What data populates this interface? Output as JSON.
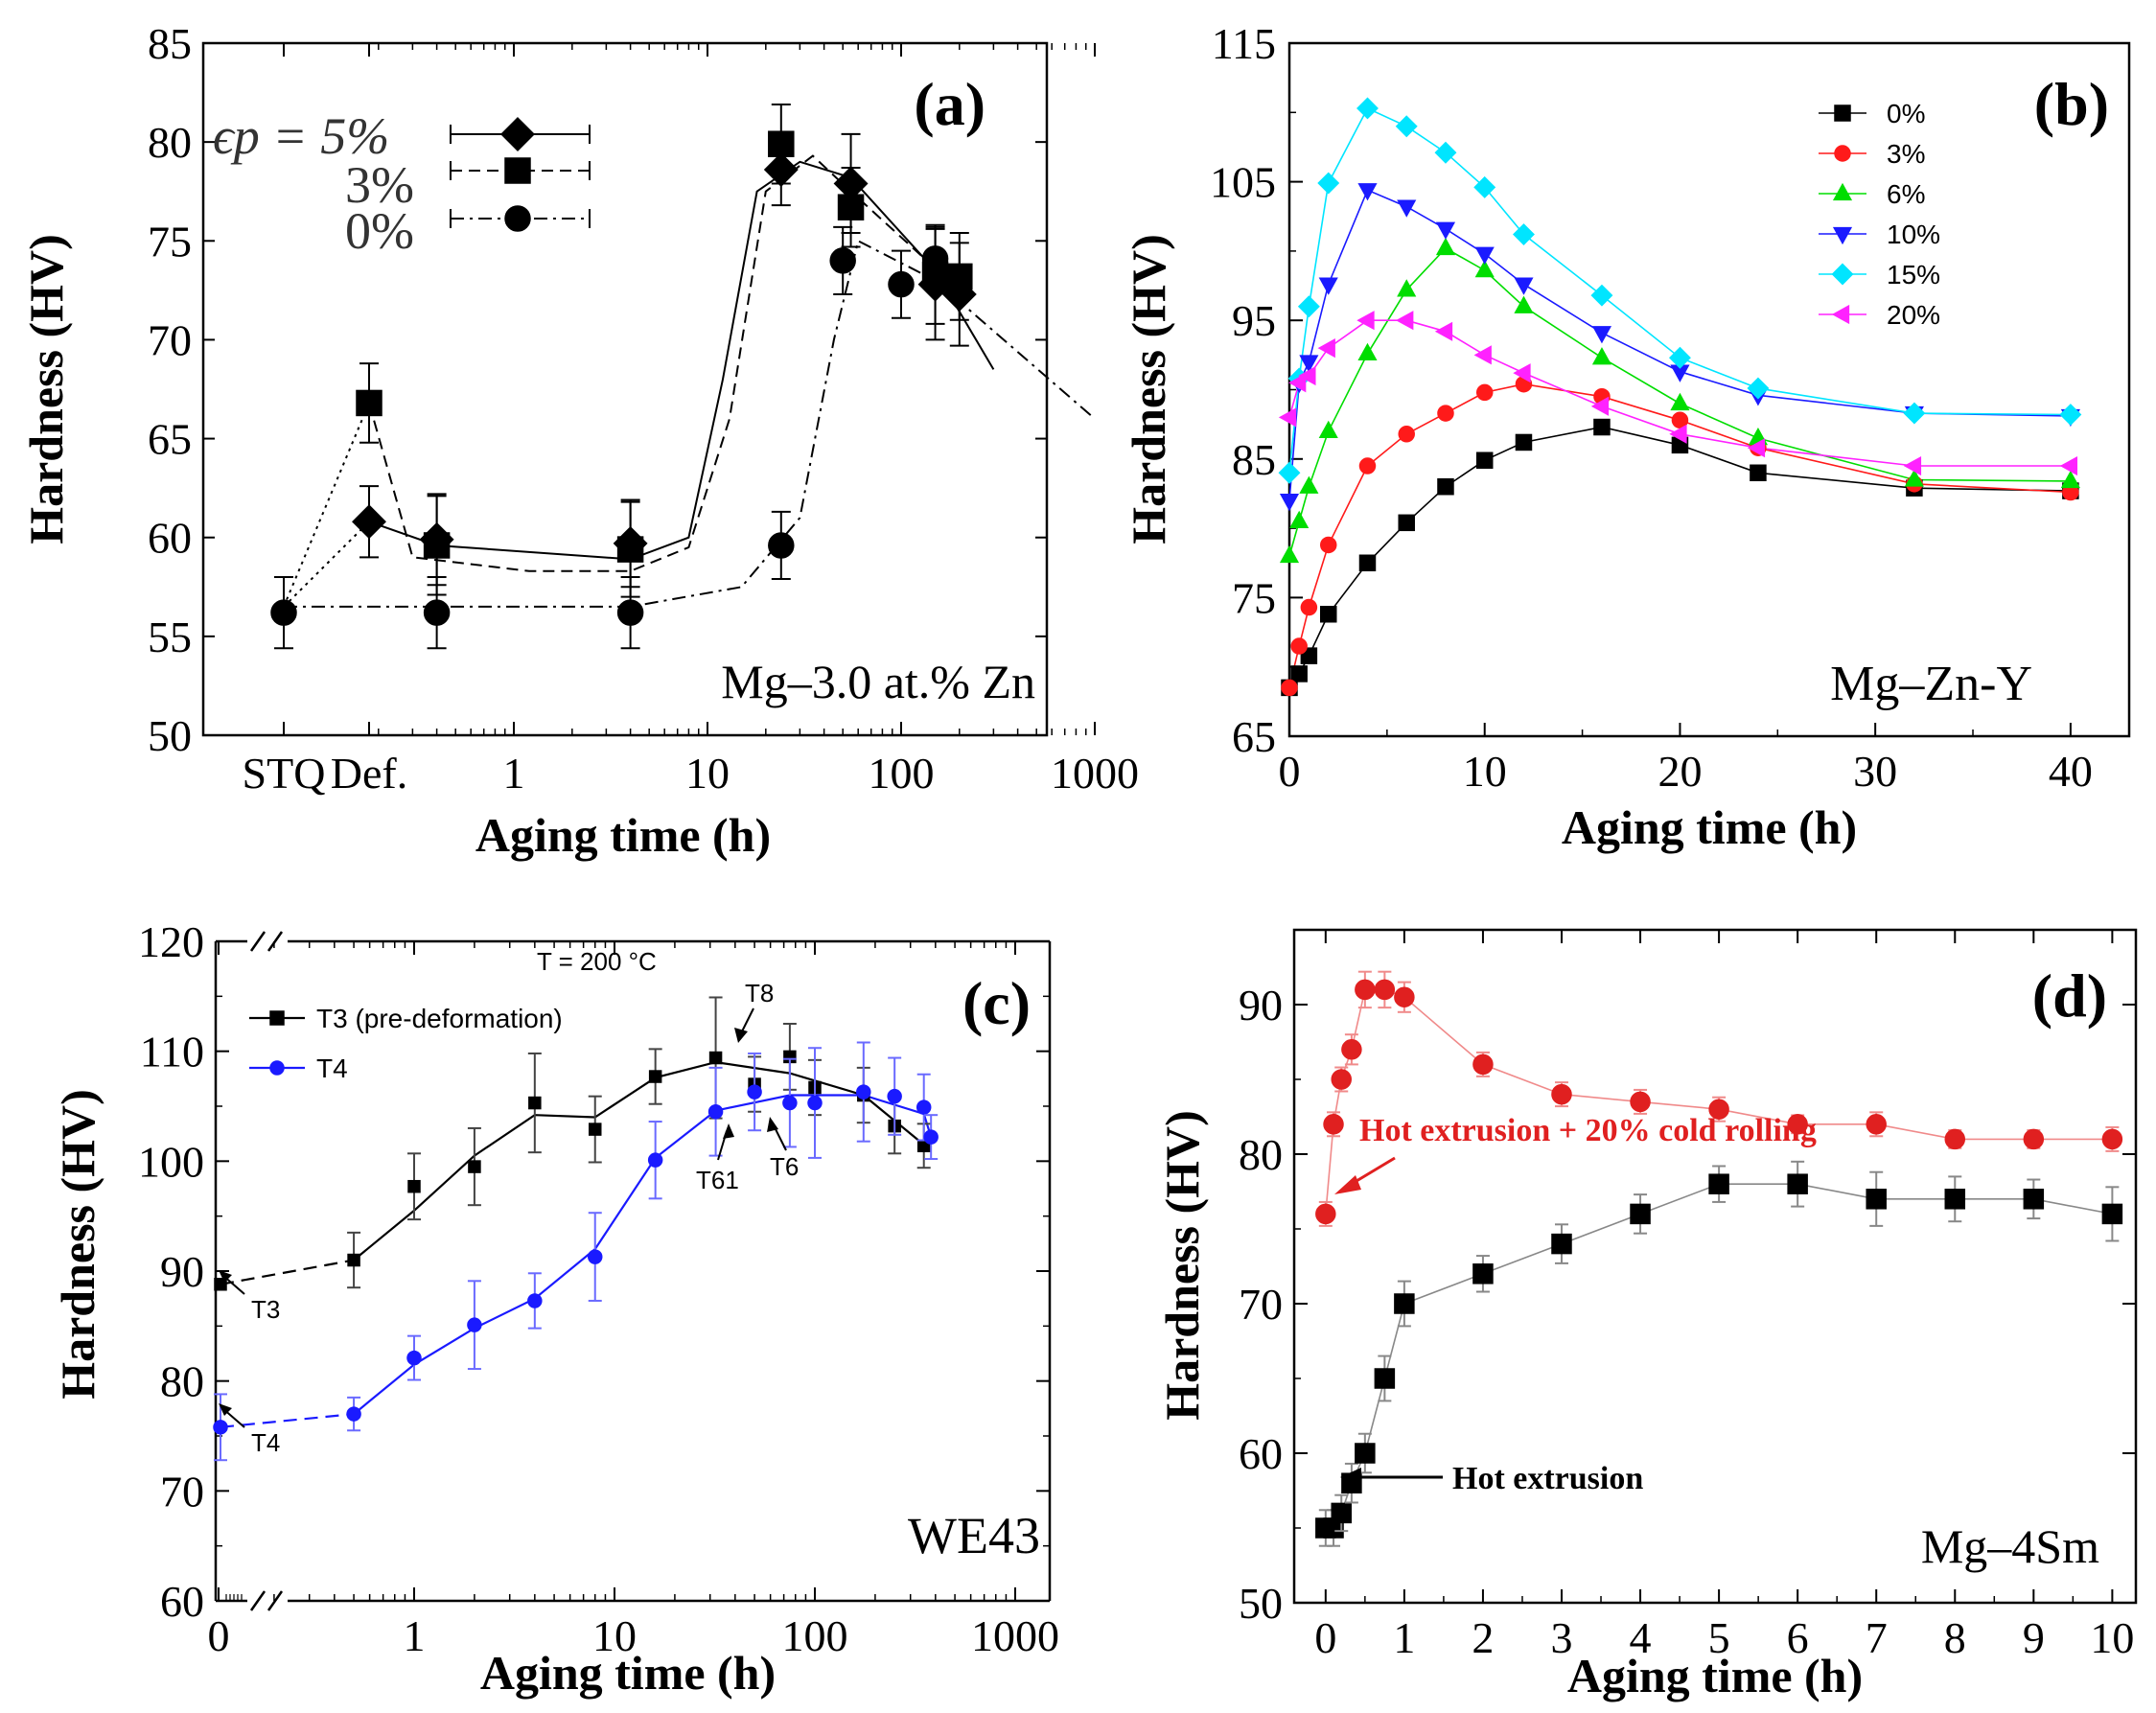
{
  "chart_data": [
    {
      "panel": "(a)",
      "type": "scatter",
      "xscale": "log",
      "xlabel": "Aging time (h)",
      "ylabel": "Hardness (HV)",
      "ylim": [
        50,
        85
      ],
      "yticks": [
        "50",
        "55",
        "60",
        "65",
        "70",
        "75",
        "80",
        "85"
      ],
      "xticks": [
        "STQ",
        "Def.",
        "1",
        "10",
        "100",
        "1000"
      ],
      "annotation": "Mg–3.0 at.% Zn",
      "legend_header": "ϵp = 5%",
      "legend": [
        "5%",
        "3%",
        "0%"
      ],
      "series": [
        {
          "name": "5%",
          "marker": "diamond",
          "dash": "solid",
          "x": [
            "Def.",
            0.4,
            4,
            24,
            55,
            150,
            200
          ],
          "y": [
            60.8,
            59.9,
            59.7,
            78.6,
            77.9,
            72.8,
            72.3
          ],
          "err": [
            1.8,
            2.3,
            2.2,
            1.8,
            2.5,
            2.8,
            2.6
          ]
        },
        {
          "name": "3%",
          "marker": "square",
          "dash": "dashed",
          "x": [
            "Def.",
            0.4,
            4,
            24,
            55,
            150,
            200
          ],
          "y": [
            66.8,
            59.6,
            59.4,
            79.9,
            76.7,
            73.3,
            73.2
          ],
          "err": [
            2.0,
            2.5,
            2.4,
            2.0,
            2.0,
            2.5,
            2.2
          ]
        },
        {
          "name": "0%",
          "marker": "circle",
          "dash": "dash-dot",
          "x": [
            "STQ",
            0.4,
            4,
            24,
            50,
            100,
            150
          ],
          "y": [
            56.2,
            56.2,
            56.2,
            59.6,
            74.0,
            72.8,
            74.1
          ],
          "err": [
            1.8,
            1.8,
            1.8,
            1.7,
            1.7,
            1.7,
            1.6
          ]
        }
      ]
    },
    {
      "panel": "(b)",
      "type": "line",
      "xlabel": "Aging time (h)",
      "ylabel": "Hardness (HV)",
      "xlim": [
        0,
        43
      ],
      "ylim": [
        65,
        115
      ],
      "xticks": [
        "0",
        "10",
        "20",
        "30",
        "40"
      ],
      "yticks": [
        "65",
        "75",
        "85",
        "95",
        "105",
        "115"
      ],
      "annotation": "Mg–Zn-Y",
      "x": [
        0,
        0.5,
        1,
        2,
        4,
        6,
        8,
        10,
        12,
        16,
        20,
        24,
        32,
        40
      ],
      "series": [
        {
          "name": "0%",
          "color": "#000000",
          "marker": "square",
          "values": [
            68.5,
            69.5,
            70.8,
            73.8,
            77.5,
            80.4,
            83.0,
            84.9,
            86.2,
            87.3,
            86.0,
            84.0,
            82.9,
            82.7
          ]
        },
        {
          "name": "3%",
          "color": "#ff1a1a",
          "marker": "circle",
          "values": [
            68.5,
            71.5,
            74.3,
            78.8,
            84.5,
            86.8,
            88.3,
            89.8,
            90.4,
            89.5,
            87.8,
            85.8,
            83.2,
            82.6
          ]
        },
        {
          "name": "6%",
          "color": "#00dd00",
          "marker": "triangle-up",
          "values": [
            78.0,
            80.5,
            83.0,
            87.0,
            92.6,
            97.2,
            100.2,
            98.6,
            96.0,
            92.3,
            89.0,
            86.5,
            83.5,
            83.4
          ]
        },
        {
          "name": "10%",
          "color": "#1a1aff",
          "marker": "triangle-down",
          "values": [
            82.0,
            90.5,
            92.0,
            97.6,
            104.4,
            103.2,
            101.6,
            99.8,
            97.6,
            94.1,
            91.3,
            89.6,
            88.3,
            88.1
          ]
        },
        {
          "name": "15%",
          "color": "#00e5ff",
          "marker": "diamond",
          "values": [
            84.0,
            90.8,
            96.0,
            104.9,
            110.3,
            109.0,
            107.1,
            104.6,
            101.2,
            96.8,
            92.3,
            90.1,
            88.3,
            88.2
          ]
        },
        {
          "name": "20%",
          "color": "#ff22ff",
          "marker": "triangle-left",
          "values": [
            88.0,
            90.5,
            91.0,
            93.0,
            95.0,
            95.0,
            94.2,
            92.5,
            91.2,
            88.8,
            86.8,
            85.8,
            84.5,
            84.5
          ]
        }
      ]
    },
    {
      "panel": "(c)",
      "type": "line",
      "xscale": "log",
      "xlabel": "Aging time (h)",
      "ylabel": "Hardness (HV)",
      "ylim": [
        60,
        120
      ],
      "yticks": [
        "60",
        "70",
        "80",
        "90",
        "100",
        "110",
        "120"
      ],
      "xticks": [
        "0",
        "1",
        "10",
        "100",
        "1000"
      ],
      "annotation": "WE43",
      "temperature_label": "T = 200 °C",
      "series": [
        {
          "name": "T3 (pre-deformation)",
          "color": "#000000",
          "marker": "square",
          "x": [
            0,
            0.5,
            1,
            2,
            4,
            8,
            16,
            32,
            50,
            75,
            100,
            175,
            250,
            350
          ],
          "y": [
            88.8,
            91.0,
            97.7,
            99.5,
            105.3,
            102.9,
            107.7,
            109.4,
            107.0,
            109.5,
            106.7,
            106.0,
            103.2,
            101.4
          ],
          "err": [
            0,
            2.5,
            3.0,
            3.5,
            4.5,
            3.0,
            2.5,
            5.5,
            2.5,
            3.0,
            2.5,
            2.5,
            2.5,
            2.0
          ]
        },
        {
          "name": "T4",
          "color": "#1a1aff",
          "marker": "circle",
          "x": [
            0,
            0.5,
            1,
            2,
            4,
            8,
            16,
            32,
            50,
            75,
            100,
            175,
            250,
            350,
            380
          ],
          "y": [
            75.8,
            77.0,
            82.1,
            85.1,
            87.3,
            91.3,
            100.1,
            104.5,
            106.3,
            105.3,
            105.3,
            106.3,
            105.9,
            104.9,
            102.2
          ],
          "err": [
            3.0,
            1.5,
            2.0,
            4.0,
            2.5,
            4.0,
            3.5,
            4.0,
            3.5,
            4.0,
            5.0,
            4.5,
            3.5,
            3.0,
            2.0
          ]
        }
      ],
      "labels": [
        "T3",
        "T4",
        "T8",
        "T61",
        "T6"
      ]
    },
    {
      "panel": "(d)",
      "type": "line",
      "xlabel": "Aging time (h)",
      "ylabel": "Hardness (HV)",
      "xlim": [
        -0.4,
        10.3
      ],
      "ylim": [
        50,
        95
      ],
      "xticks": [
        "0",
        "1",
        "2",
        "3",
        "4",
        "5",
        "6",
        "7",
        "8",
        "9",
        "10"
      ],
      "yticks": [
        "50",
        "60",
        "70",
        "80",
        "90"
      ],
      "annotation": "Mg–4Sm",
      "series": [
        {
          "name": "Hot extrusion",
          "color": "#000000",
          "marker": "square",
          "x": [
            0,
            0.1,
            0.2,
            0.33,
            0.5,
            0.75,
            1,
            2,
            3,
            4,
            5,
            6,
            7,
            8,
            9,
            10
          ],
          "y": [
            55,
            55,
            56,
            58,
            60,
            65,
            70,
            72,
            74,
            76,
            78,
            78,
            77,
            77,
            77,
            76
          ],
          "err": [
            1.2,
            1.2,
            1.2,
            1.3,
            1.3,
            1.5,
            1.5,
            1.2,
            1.3,
            1.3,
            1.2,
            1.5,
            1.8,
            1.5,
            1.3,
            1.8
          ]
        },
        {
          "name": "Hot extrusion + 20% cold rolling",
          "color": "#e02020",
          "marker": "circle",
          "x": [
            0,
            0.1,
            0.2,
            0.33,
            0.5,
            0.75,
            1,
            2,
            3,
            4,
            5,
            6,
            7,
            8,
            9,
            10
          ],
          "y": [
            76,
            82,
            85,
            87,
            91,
            91,
            90.5,
            86,
            84,
            83.5,
            83,
            82,
            82,
            81,
            81,
            81
          ],
          "err": [
            0.8,
            0.8,
            0.8,
            1.0,
            1.2,
            1.2,
            1.0,
            0.8,
            0.8,
            0.8,
            0.8,
            0.6,
            0.8,
            0.6,
            0.6,
            0.8
          ]
        }
      ]
    }
  ]
}
